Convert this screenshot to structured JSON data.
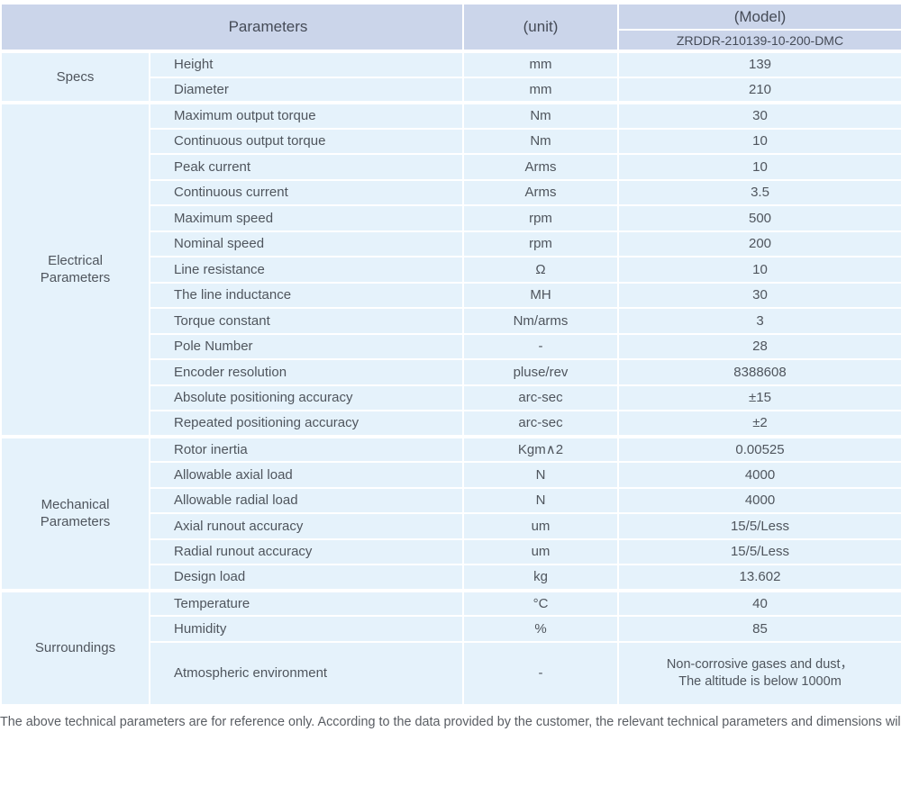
{
  "colors": {
    "header_bg": "#cbd5ea",
    "row_bg": "#e5f2fb",
    "header_text": "#454b57",
    "body_text": "#4f555d"
  },
  "header": {
    "parameters_label": "Parameters",
    "unit_label": "(unit)",
    "model_label": "(Model)",
    "model_value": "ZRDDR-210139-10-200-DMC"
  },
  "sections": [
    {
      "category": "Specs",
      "rows": [
        {
          "parameter": "Height",
          "unit": "mm",
          "value": "139"
        },
        {
          "parameter": "Diameter",
          "unit": "mm",
          "value": "210"
        }
      ]
    },
    {
      "category": "Electrical\nParameters",
      "rows": [
        {
          "parameter": "Maximum output torque",
          "unit": "Nm",
          "value": "30"
        },
        {
          "parameter": "Continuous output torque",
          "unit": "Nm",
          "value": "10"
        },
        {
          "parameter": "Peak current",
          "unit": "Arms",
          "value": "10"
        },
        {
          "parameter": "Continuous current",
          "unit": "Arms",
          "value": "3.5"
        },
        {
          "parameter": "Maximum speed",
          "unit": "rpm",
          "value": "500"
        },
        {
          "parameter": "Nominal speed",
          "unit": "rpm",
          "value": "200"
        },
        {
          "parameter": "Line resistance",
          "unit": "Ω",
          "value": "10"
        },
        {
          "parameter": "The line inductance",
          "unit": "MH",
          "value": "30"
        },
        {
          "parameter": "Torque constant",
          "unit": "Nm/arms",
          "value": "3"
        },
        {
          "parameter": "Pole Number",
          "unit": "-",
          "value": "28"
        },
        {
          "parameter": "Encoder resolution",
          "unit": "pluse/rev",
          "value": "8388608"
        },
        {
          "parameter": "Absolute positioning accuracy",
          "unit": "arc-sec",
          "value": "±15"
        },
        {
          "parameter": "Repeated positioning accuracy",
          "unit": "arc-sec",
          "value": "±2"
        }
      ]
    },
    {
      "category": "Mechanical\nParameters",
      "rows": [
        {
          "parameter": "Rotor inertia",
          "unit": "Kgm∧2",
          "value": "0.00525"
        },
        {
          "parameter": "Allowable axial load",
          "unit": "N",
          "value": "4000"
        },
        {
          "parameter": "Allowable radial load",
          "unit": "N",
          "value": "4000"
        },
        {
          "parameter": "Axial runout accuracy",
          "unit": "um",
          "value": "15/5/Less"
        },
        {
          "parameter": "Radial runout accuracy",
          "unit": "um",
          "value": "15/5/Less"
        },
        {
          "parameter": "Design load",
          "unit": "kg",
          "value": "13.602"
        }
      ]
    },
    {
      "category": "Surroundings",
      "rows": [
        {
          "parameter": "Temperature",
          "unit": "°C",
          "value": "40"
        },
        {
          "parameter": "Humidity",
          "unit": "%",
          "value": "85"
        },
        {
          "parameter": "Atmospheric environment",
          "unit": "-",
          "value": "Non-corrosive gases and dust，\nThe altitude is below 1000m"
        }
      ]
    }
  ],
  "footer_note": "The above technical parameters are for reference only. According to the data provided by the customer, the relevant technical parameters and dimensions will be issued."
}
